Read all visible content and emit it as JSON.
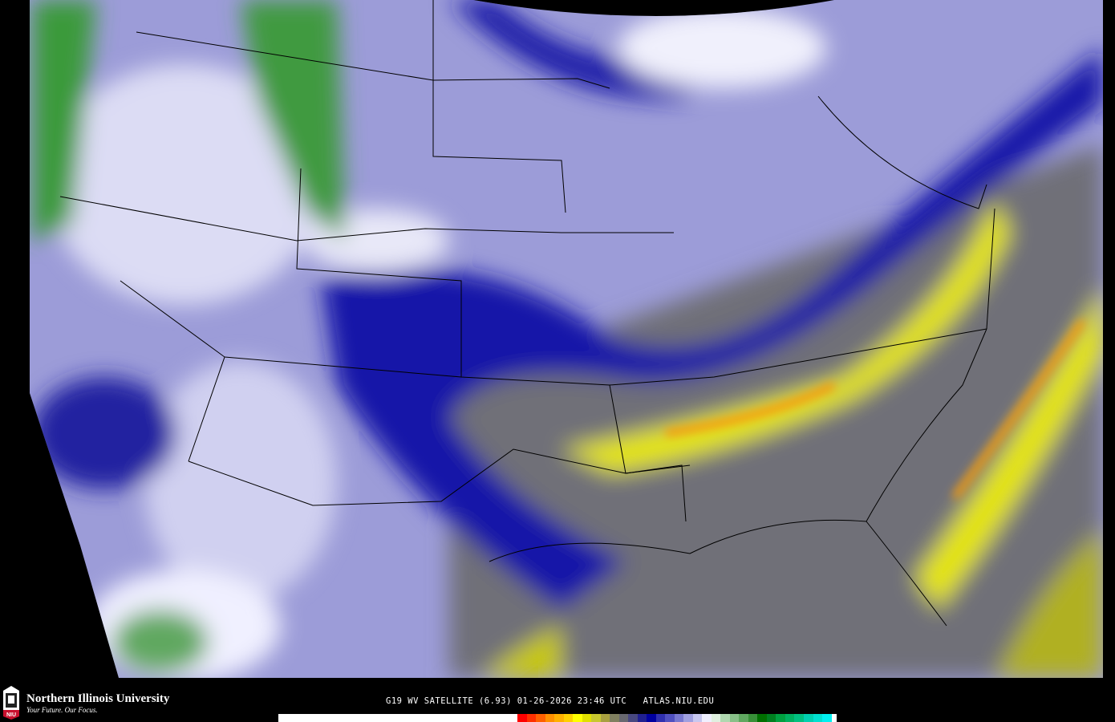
{
  "footer": {
    "university_name": "Northern Illinois University",
    "tagline": "Your Future. Our Focus.",
    "logo_text": "NIU",
    "caption": "G19 WV SATELLITE (6.93) 01-26-2026 23:46 UTC   ATLAS.NIU.EDU"
  },
  "colorbar": {
    "colors": [
      "#ff0000",
      "#ff3000",
      "#ff6000",
      "#ff9000",
      "#ffb000",
      "#ffd000",
      "#ffff00",
      "#e0e000",
      "#c8c830",
      "#a8a040",
      "#808060",
      "#686870",
      "#484880",
      "#202090",
      "#0000a0",
      "#3030b0",
      "#5050c0",
      "#7878d0",
      "#a0a0e0",
      "#c8c8f0",
      "#f0f0ff",
      "#e0f0e0",
      "#b0d8b0",
      "#88c088",
      "#60a860",
      "#389038",
      "#007000",
      "#008020",
      "#00a040",
      "#00b060",
      "#00c080",
      "#00d0b0",
      "#00e0d0",
      "#00f0f0"
    ]
  },
  "map": {
    "product": "Water vapor satellite imagery",
    "colors": {
      "dry": "#e8e800",
      "mid": "#6a6a78",
      "moist": "#1010a8",
      "cold": "#c0c0ec",
      "very_cold": "#207a20"
    }
  }
}
